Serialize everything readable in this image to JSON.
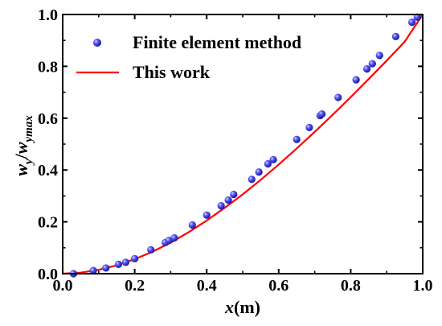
{
  "chart_data": {
    "type": "scatter",
    "title": "",
    "xlabel": {
      "var": "x",
      "unit": "(m)"
    },
    "ylabel": {
      "num": "w",
      "num_sub": "y",
      "sep": "/",
      "den": "w",
      "den_sub": "ymax"
    },
    "xlim": [
      0.0,
      1.0
    ],
    "ylim": [
      0.0,
      1.0
    ],
    "xticks": [
      "0.0",
      "0.2",
      "0.4",
      "0.6",
      "0.8",
      "1.0"
    ],
    "yticks": [
      "0.0",
      "0.2",
      "0.4",
      "0.6",
      "0.8",
      "1.0"
    ],
    "grid": false,
    "legend_position": "top-left",
    "series": [
      {
        "name": "Finite element method",
        "kind": "markers",
        "color": "#3a3ae8",
        "x": [
          0.03,
          0.085,
          0.12,
          0.155,
          0.175,
          0.2,
          0.245,
          0.285,
          0.295,
          0.31,
          0.36,
          0.4,
          0.44,
          0.46,
          0.475,
          0.525,
          0.545,
          0.57,
          0.585,
          0.65,
          0.685,
          0.715,
          0.72,
          0.765,
          0.815,
          0.845,
          0.86,
          0.88,
          0.925,
          0.97,
          0.985
        ],
        "y": [
          0.0,
          0.012,
          0.022,
          0.036,
          0.044,
          0.058,
          0.092,
          0.12,
          0.128,
          0.138,
          0.188,
          0.226,
          0.262,
          0.284,
          0.306,
          0.364,
          0.392,
          0.424,
          0.44,
          0.518,
          0.564,
          0.61,
          0.616,
          0.68,
          0.748,
          0.79,
          0.81,
          0.842,
          0.915,
          0.97,
          0.99
        ]
      },
      {
        "name": "This work",
        "kind": "line",
        "color": "#ff0000",
        "x": [
          0.0,
          0.05,
          0.1,
          0.15,
          0.2,
          0.25,
          0.3,
          0.35,
          0.4,
          0.45,
          0.5,
          0.55,
          0.6,
          0.65,
          0.7,
          0.75,
          0.8,
          0.85,
          0.9,
          0.95,
          1.0
        ],
        "y": [
          0.0,
          0.004,
          0.015,
          0.032,
          0.056,
          0.085,
          0.12,
          0.16,
          0.205,
          0.254,
          0.306,
          0.362,
          0.421,
          0.483,
          0.547,
          0.613,
          0.681,
          0.751,
          0.822,
          0.895,
          1.0
        ]
      }
    ]
  }
}
